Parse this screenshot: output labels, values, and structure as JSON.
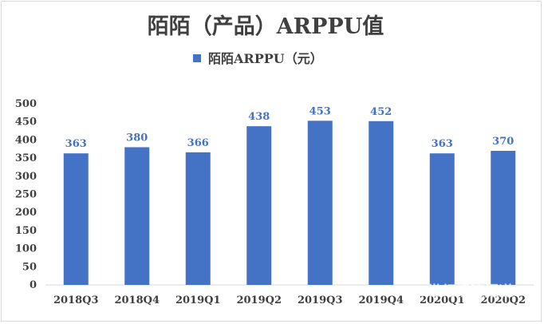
{
  "chart_data": {
    "type": "bar",
    "title": "陌陌（产品）ARPPU值",
    "legend": {
      "position": "top",
      "label": "陌陌ARPPU（元）",
      "color": "#4472c4"
    },
    "categories": [
      "2018Q3",
      "2018Q4",
      "2019Q1",
      "2019Q2",
      "2019Q3",
      "2019Q4",
      "2020Q1",
      "2020Q2"
    ],
    "series": [
      {
        "name": "陌陌ARPPU（元）",
        "values": [
          363,
          380,
          366,
          438,
          453,
          452,
          363,
          370
        ],
        "color": "#4472c4"
      }
    ],
    "y_ticks": [
      0,
      50,
      100,
      150,
      200,
      250,
      300,
      350,
      400,
      450,
      500
    ],
    "ylim": [
      0,
      500
    ],
    "grid": false,
    "data_labels": true
  },
  "watermark": {
    "main": "21世纪经济报道",
    "sub": "21ST CENTURY BUSINESS HERALD"
  }
}
